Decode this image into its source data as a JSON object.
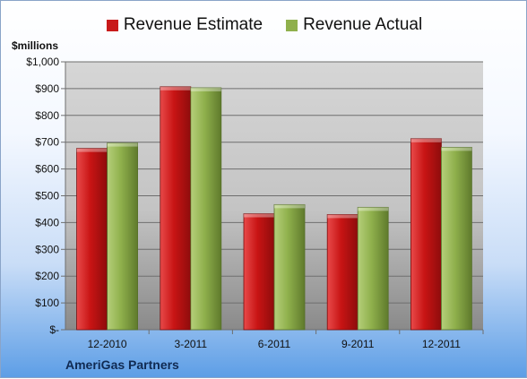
{
  "chart_data": {
    "type": "bar",
    "categories": [
      "12-2010",
      "3-2011",
      "6-2011",
      "9-2011",
      "12-2011"
    ],
    "series": [
      {
        "name": "Revenue Estimate",
        "values": [
          677,
          907,
          433,
          430,
          713
        ],
        "color": "#c81a1a"
      },
      {
        "name": "Revenue Actual",
        "values": [
          697,
          903,
          467,
          457,
          681
        ],
        "color": "#8fb04c"
      }
    ],
    "ylabel": "$millions",
    "ylim": [
      0,
      1000
    ],
    "yticks": [
      0,
      100,
      200,
      300,
      400,
      500,
      600,
      700,
      800,
      900,
      1000
    ],
    "yticklabels": [
      "$-",
      "$100",
      "$200",
      "$300",
      "$400",
      "$500",
      "$600",
      "$700",
      "$800",
      "$900",
      "$1,000"
    ],
    "grid": true,
    "legend": "top"
  },
  "footer": "AmeriGas Partners"
}
